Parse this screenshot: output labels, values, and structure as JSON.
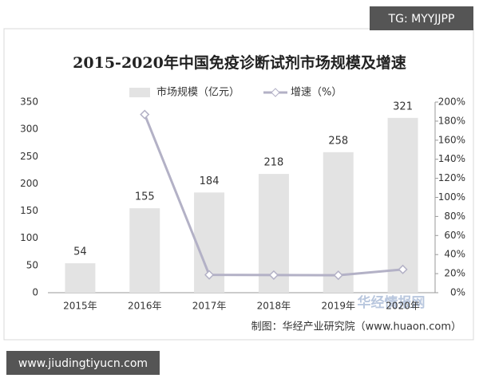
{
  "chart_data": {
    "type": "bar_line",
    "title": "2015-2020年中国免疫诊断试剂市场规模及增速",
    "categories": [
      "2015年",
      "2016年",
      "2017年",
      "2018年",
      "2019年",
      "2020年"
    ],
    "series": [
      {
        "name": "市场规模（亿元）",
        "type": "bar",
        "color": "#e3e3e3",
        "values": [
          54,
          155,
          184,
          218,
          258,
          321
        ]
      },
      {
        "name": "增速（%）",
        "type": "line",
        "axis": "y2",
        "color": "#b3b1c6",
        "values": [
          null,
          187,
          18.7,
          18.5,
          18.3,
          24.4
        ]
      }
    ],
    "ylim": [
      0,
      350
    ],
    "yticks": [
      0,
      50,
      100,
      150,
      200,
      250,
      300,
      350
    ],
    "y2lim": [
      0,
      200
    ],
    "y2ticks": [
      {
        "value": 0,
        "label": "0%"
      },
      {
        "value": 20,
        "label": "20%"
      },
      {
        "value": 40,
        "label": "40%"
      },
      {
        "value": 60,
        "label": "60%"
      },
      {
        "value": 80,
        "label": "80%"
      },
      {
        "value": 100,
        "label": "100%"
      },
      {
        "value": 120,
        "label": "120%"
      },
      {
        "value": 140,
        "label": "140%"
      },
      {
        "value": 160,
        "label": "160%"
      },
      {
        "value": 180,
        "label": "180%"
      },
      {
        "value": 200,
        "label": "200%"
      }
    ],
    "source": "制图：华经产业研究院（www.huaon.com）"
  },
  "watermarks": {
    "top": "TG: MYYJJPP",
    "bottom": "www.jiudingtiyucn.com",
    "logo": "华经情报网"
  }
}
